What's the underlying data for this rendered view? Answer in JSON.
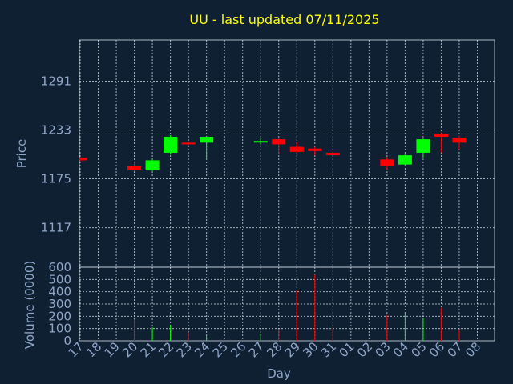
{
  "chart_data": {
    "type": "candlestick",
    "title": "UU - last updated 07/11/2025",
    "xlabel": "Day",
    "price_panel": {
      "ylabel": "Price",
      "ylim": [
        1070,
        1340
      ],
      "yticks": [
        1117,
        1175,
        1233,
        1291
      ]
    },
    "volume_panel": {
      "ylabel": "Volume (0000)",
      "ylim": [
        0,
        600
      ],
      "yticks": [
        0,
        100,
        200,
        300,
        400,
        500,
        600
      ]
    },
    "x_tick_labels": [
      "17",
      "18",
      "19",
      "20",
      "21",
      "22",
      "23",
      "24",
      "25",
      "26",
      "27",
      "28",
      "29",
      "30",
      "31",
      "01",
      "02",
      "03",
      "04",
      "05",
      "06",
      "07",
      "08"
    ],
    "up_color": "#00ff00",
    "down_color": "#ff0000",
    "candles": [
      {
        "day": "17",
        "open": 1200,
        "high": 1201,
        "low": 1196,
        "close": 1197,
        "volume": 0
      },
      {
        "day": "20",
        "open": 1190,
        "high": 1195,
        "low": 1184,
        "close": 1185,
        "volume": 175
      },
      {
        "day": "21",
        "open": 1185,
        "high": 1198,
        "low": 1184,
        "close": 1197,
        "volume": 110
      },
      {
        "day": "22",
        "open": 1206,
        "high": 1227,
        "low": 1204,
        "close": 1225,
        "volume": 130
      },
      {
        "day": "23",
        "open": 1218,
        "high": 1219,
        "low": 1215,
        "close": 1216,
        "volume": 70
      },
      {
        "day": "24",
        "open": 1218,
        "high": 1225,
        "low": 1198,
        "close": 1225,
        "volume": 50
      },
      {
        "day": "27",
        "open": 1219,
        "high": 1223,
        "low": 1215,
        "close": 1220,
        "volume": 60
      },
      {
        "day": "28",
        "open": 1222,
        "high": 1224,
        "low": 1205,
        "close": 1216,
        "volume": 95
      },
      {
        "day": "29",
        "open": 1213,
        "high": 1218,
        "low": 1206,
        "close": 1207,
        "volume": 410
      },
      {
        "day": "30",
        "open": 1211,
        "high": 1213,
        "low": 1203,
        "close": 1208,
        "volume": 540
      },
      {
        "day": "31",
        "open": 1206,
        "high": 1208,
        "low": 1203,
        "close": 1203,
        "volume": 110
      },
      {
        "day": "03",
        "open": 1198,
        "high": 1201,
        "low": 1186,
        "close": 1190,
        "volume": 210
      },
      {
        "day": "04",
        "open": 1192,
        "high": 1204,
        "low": 1190,
        "close": 1203,
        "volume": 235
      },
      {
        "day": "05",
        "open": 1206,
        "high": 1224,
        "low": 1200,
        "close": 1222,
        "volume": 185
      },
      {
        "day": "06",
        "open": 1228,
        "high": 1230,
        "low": 1206,
        "close": 1225,
        "volume": 270
      },
      {
        "day": "07",
        "open": 1224,
        "high": 1226,
        "low": 1210,
        "close": 1218,
        "volume": 90
      }
    ]
  }
}
